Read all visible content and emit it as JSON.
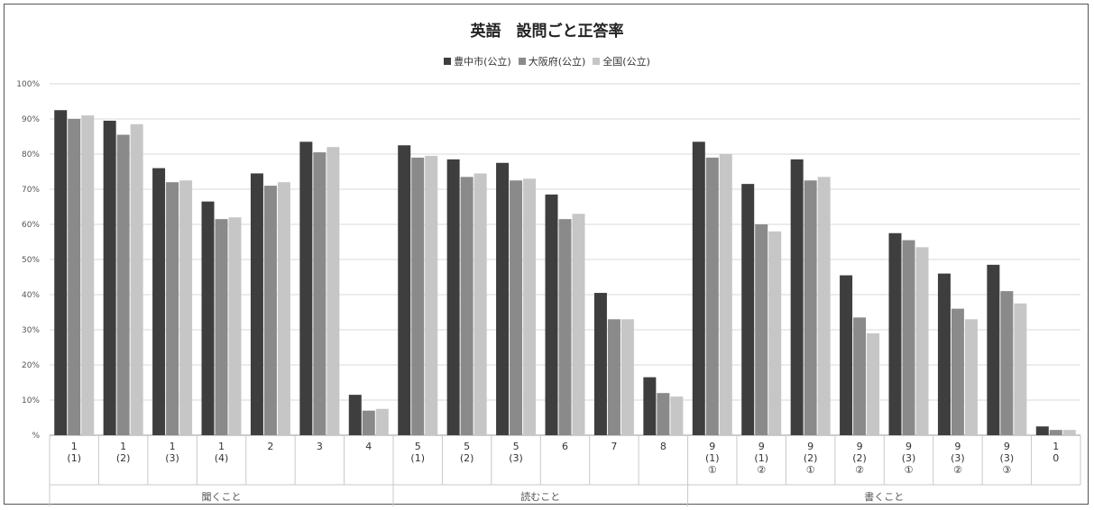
{
  "chart_data": {
    "type": "bar",
    "title": "英語　設問ごと正答率",
    "ylim": [
      0,
      100
    ],
    "yticks": [
      "%",
      "10%",
      "20%",
      "30%",
      "40%",
      "50%",
      "60%",
      "70%",
      "80%",
      "90%",
      "100%"
    ],
    "grid": true,
    "legend_position": "top-center",
    "colors": [
      "#3e3e3e",
      "#8a8a8a",
      "#c6c6c6"
    ],
    "categories": [
      [
        "1",
        "(1)"
      ],
      [
        "1",
        "(2)"
      ],
      [
        "1",
        "(3)"
      ],
      [
        "1",
        "(4)"
      ],
      [
        "2"
      ],
      [
        "3"
      ],
      [
        "4"
      ],
      [
        "5",
        "(1)"
      ],
      [
        "5",
        "(2)"
      ],
      [
        "5",
        "(3)"
      ],
      [
        "6"
      ],
      [
        "7"
      ],
      [
        "8"
      ],
      [
        "9",
        "(1)",
        "①"
      ],
      [
        "9",
        "(1)",
        "②"
      ],
      [
        "9",
        "(2)",
        "①"
      ],
      [
        "9",
        "(2)",
        "②"
      ],
      [
        "9",
        "(3)",
        "①"
      ],
      [
        "9",
        "(3)",
        "②"
      ],
      [
        "9",
        "(3)",
        "③"
      ],
      [
        "1",
        "0"
      ]
    ],
    "groups": [
      {
        "label": "聞くこと",
        "count": 7
      },
      {
        "label": "読むこと",
        "count": 6
      },
      {
        "label": "書くこと",
        "count": 8
      }
    ],
    "series": [
      {
        "name": "豊中市(公立)",
        "values": [
          92.5,
          89.5,
          76,
          66.5,
          74.5,
          83.5,
          11.5,
          82.5,
          78.5,
          77.5,
          68.5,
          40.5,
          16.5,
          83.5,
          71.5,
          78.5,
          45.5,
          57.5,
          46,
          48.5,
          2.5
        ]
      },
      {
        "name": "大阪府(公立)",
        "values": [
          90,
          85.5,
          72,
          61.5,
          71,
          80.5,
          7,
          79,
          73.5,
          72.5,
          61.5,
          33,
          12,
          79,
          60,
          72.5,
          33.5,
          55.5,
          36,
          41,
          1.5
        ]
      },
      {
        "name": "全国(公立)",
        "values": [
          91,
          88.5,
          72.5,
          62,
          72,
          82,
          7.5,
          79.5,
          74.5,
          73,
          63,
          33,
          11,
          80,
          58,
          73.5,
          29,
          53.5,
          33,
          37.5,
          1.5
        ]
      }
    ]
  }
}
